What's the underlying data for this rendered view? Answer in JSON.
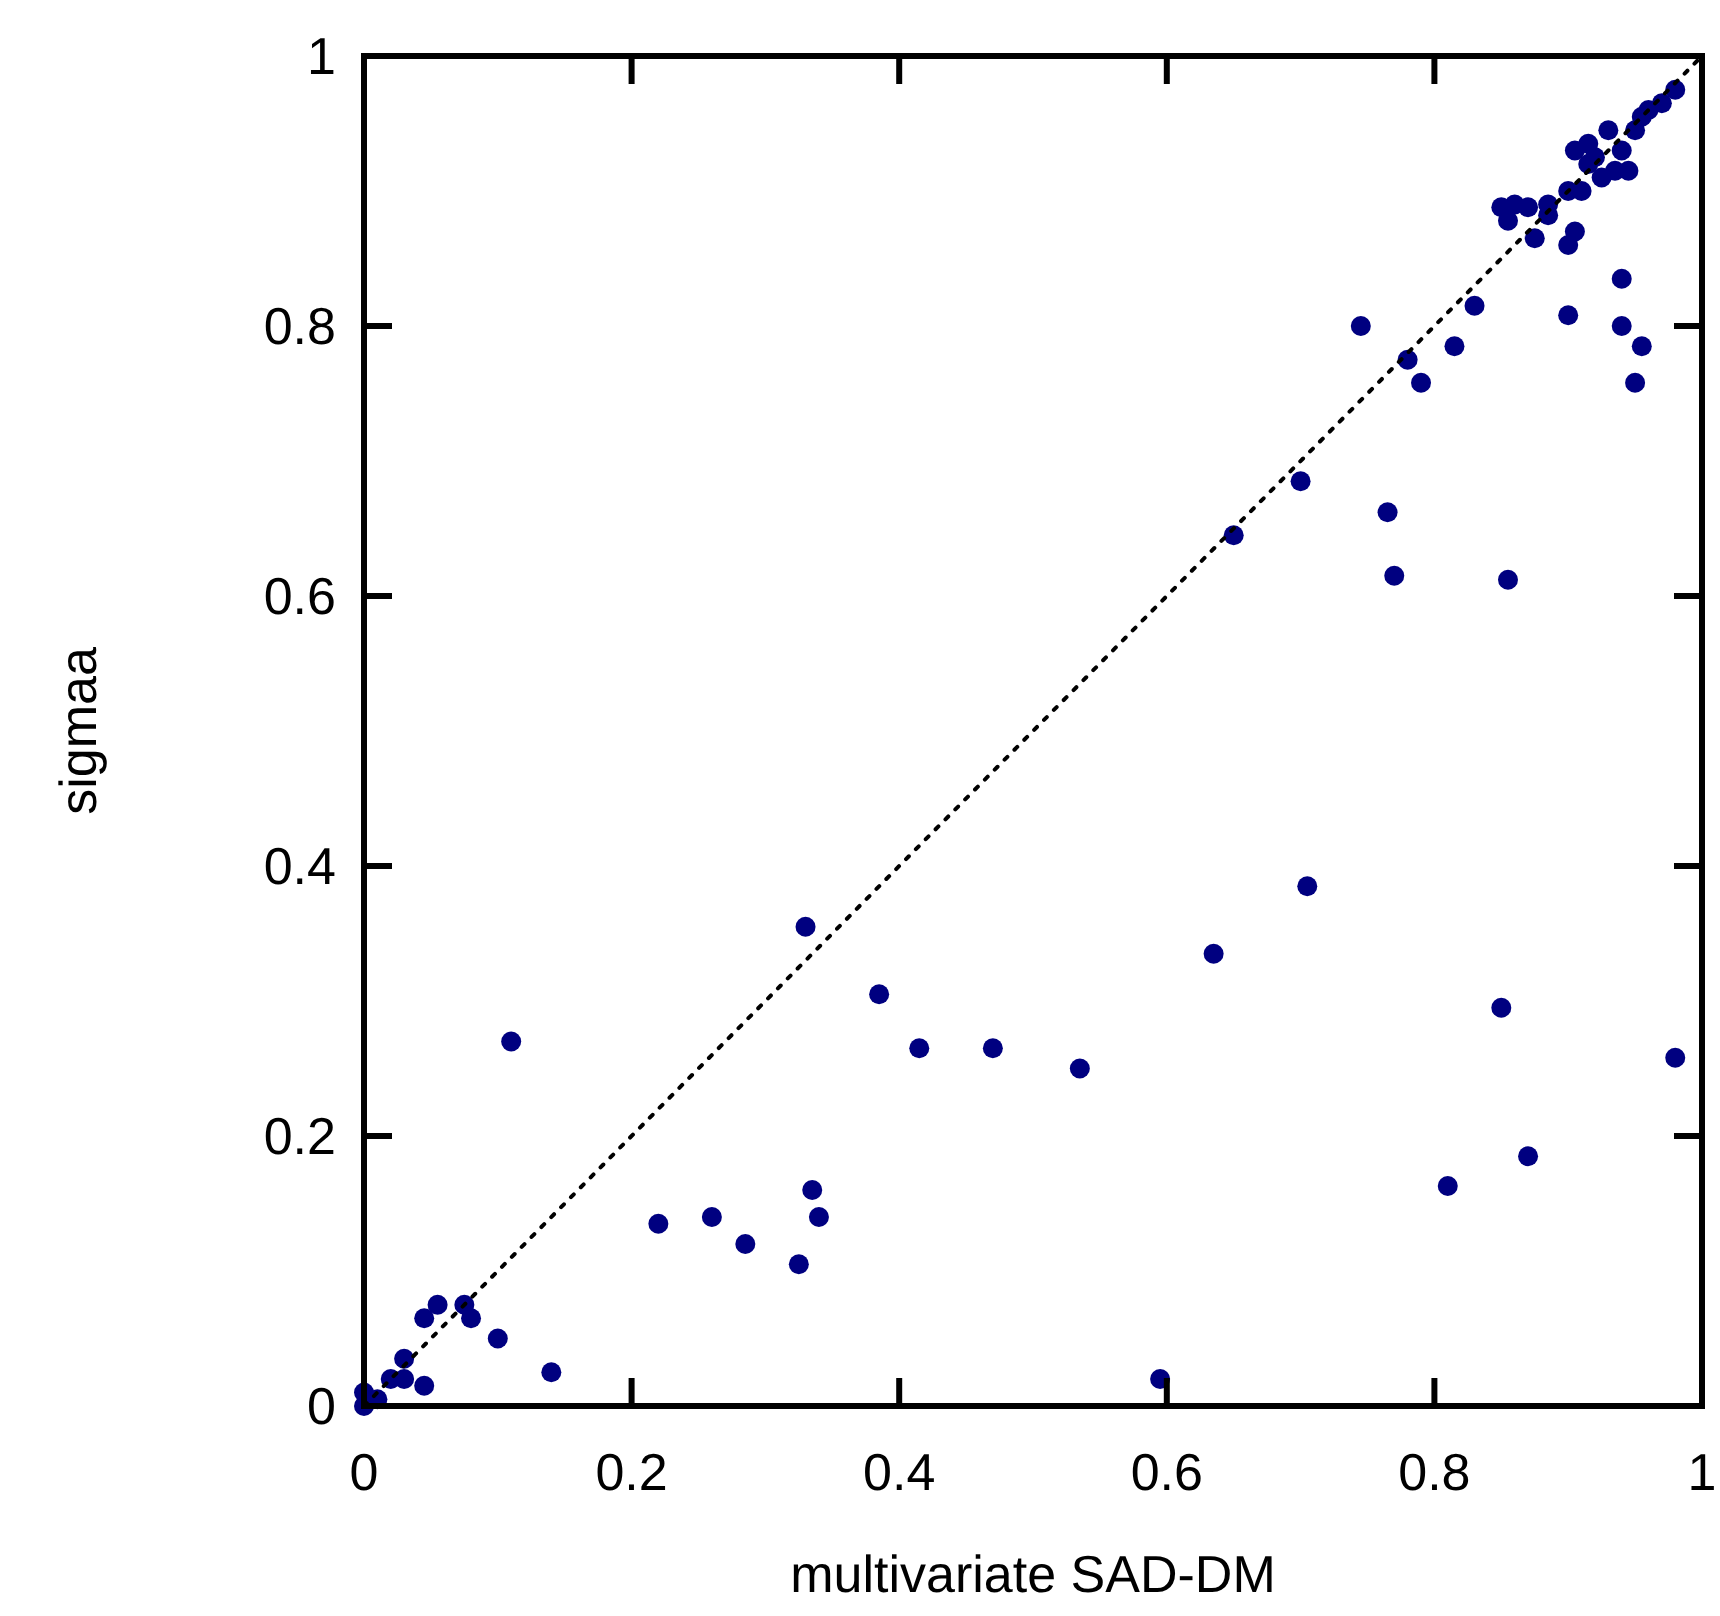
{
  "chart_data": {
    "type": "scatter",
    "xlabel": "multivariate SAD-DM",
    "ylabel": "sigmaa",
    "xlim": [
      0,
      1
    ],
    "ylim": [
      0,
      1
    ],
    "xticks": [
      0,
      0.2,
      0.4,
      0.6,
      0.8,
      1
    ],
    "yticks": [
      0,
      0.2,
      0.4,
      0.6,
      0.8,
      1
    ],
    "grid": false,
    "marker": "circle",
    "series": [
      {
        "color": "#000080",
        "x": [
          0.0,
          0.0,
          0.01,
          0.02,
          0.03,
          0.03,
          0.045,
          0.045,
          0.055,
          0.075,
          0.08,
          0.1,
          0.14,
          0.11,
          0.22,
          0.26,
          0.285,
          0.325,
          0.335,
          0.34,
          0.33,
          0.385,
          0.415,
          0.47,
          0.535,
          0.595,
          0.635,
          0.705,
          0.65,
          0.7,
          0.745,
          0.765,
          0.77,
          0.78,
          0.79,
          0.815,
          0.81,
          0.85,
          0.855,
          0.87,
          0.98,
          0.83,
          0.875,
          0.9,
          0.94,
          0.94,
          0.95,
          0.955,
          0.85,
          0.86,
          0.87,
          0.855,
          0.885,
          0.885,
          0.9,
          0.9,
          0.905,
          0.91,
          0.915,
          0.905,
          0.92,
          0.93,
          0.94,
          0.945,
          0.935,
          0.95,
          0.955,
          0.96,
          0.97,
          0.98,
          0.915,
          0.925
        ],
        "values": [
          0.01,
          0.0,
          0.005,
          0.02,
          0.035,
          0.02,
          0.015,
          0.065,
          0.075,
          0.075,
          0.065,
          0.05,
          0.025,
          0.27,
          0.135,
          0.14,
          0.12,
          0.105,
          0.16,
          0.14,
          0.355,
          0.305,
          0.265,
          0.265,
          0.25,
          0.02,
          0.335,
          0.385,
          0.645,
          0.685,
          0.8,
          0.662,
          0.615,
          0.775,
          0.758,
          0.785,
          0.163,
          0.295,
          0.612,
          0.185,
          0.258,
          0.815,
          0.865,
          0.808,
          0.835,
          0.8,
          0.758,
          0.785,
          0.888,
          0.89,
          0.888,
          0.878,
          0.89,
          0.882,
          0.9,
          0.86,
          0.87,
          0.9,
          0.92,
          0.93,
          0.925,
          0.945,
          0.93,
          0.915,
          0.915,
          0.945,
          0.955,
          0.96,
          0.965,
          0.975,
          0.935,
          0.91
        ]
      },
      {
        "type": "line",
        "color": "#000000",
        "line_style": "dotted",
        "marker": "none",
        "x": [
          0,
          1
        ],
        "values": [
          0,
          1
        ]
      }
    ]
  }
}
